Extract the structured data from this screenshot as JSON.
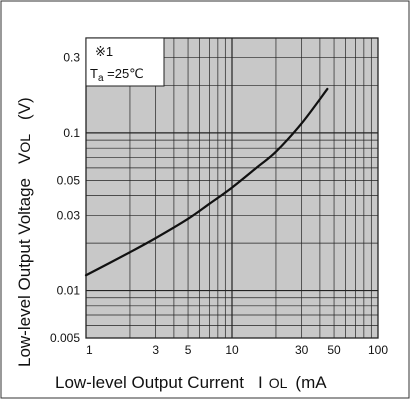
{
  "chart_data": {
    "type": "line",
    "title": "",
    "xlabel": "Low-level Output Current",
    "xlabel_symbol_main": "I",
    "xlabel_symbol_sub": "OL",
    "xlabel_unit": "(mA",
    "ylabel": "Low-level Output Voltage",
    "ylabel_symbol_main": "V",
    "ylabel_symbol_sub": "OL",
    "ylabel_unit": "(V)",
    "xscale": "log",
    "yscale": "log",
    "xlim": [
      1,
      100
    ],
    "ylim": [
      0.005,
      0.4
    ],
    "grid": true,
    "x_ticks": [
      1,
      3,
      5,
      10,
      30,
      50,
      100
    ],
    "x_tick_labels": [
      "1",
      "3",
      "5",
      "10",
      "30",
      "50",
      "100"
    ],
    "y_ticks": [
      0.005,
      0.01,
      0.03,
      0.05,
      0.1,
      0.3
    ],
    "y_tick_labels": [
      "0.005",
      "0.01",
      "0.03",
      "0.05",
      "0.1",
      "0.3"
    ],
    "annotation": {
      "note": "※1",
      "condition_main": "T",
      "condition_sub": "a",
      "condition_value": " =25℃"
    },
    "series": [
      {
        "x": [
          1,
          2,
          3,
          5,
          7,
          10,
          15,
          20,
          30,
          45
        ],
        "y": [
          0.0125,
          0.0175,
          0.0215,
          0.0285,
          0.0355,
          0.045,
          0.061,
          0.076,
          0.115,
          0.19
        ]
      }
    ],
    "colors": {
      "plot_background": "#c8c8c8",
      "grid_line": "#222222",
      "curve": "#111111",
      "frame": "#222222"
    }
  }
}
